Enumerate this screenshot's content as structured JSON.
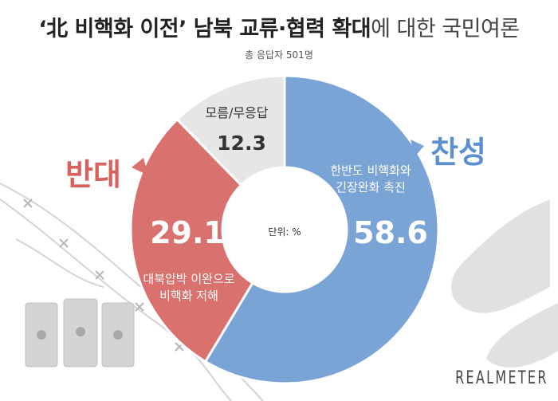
{
  "header": {
    "title_bold": "‘北 비핵화 이전’ 남북 교류·협력 확대",
    "title_rest": "에 대한 국민여론",
    "subtitle": "총 응답자 501명"
  },
  "chart_data": {
    "type": "pie",
    "donut": true,
    "unit_label": "단위: %",
    "slices": [
      {
        "category": "찬성",
        "description": [
          "한반도 비핵화와",
          "긴장완화 촉진"
        ],
        "value": 58.6,
        "color": "#7ba4d6"
      },
      {
        "category": "반대",
        "description": [
          "대북압박 이완으로",
          "비핵화 저해"
        ],
        "value": 29.1,
        "color": "#d9716e"
      },
      {
        "category": "모름/무응답",
        "description": [],
        "value": 12.3,
        "color": "#e6e6e6"
      }
    ]
  },
  "colors": {
    "agree_text": "#5a8fd0",
    "disagree_text": "#d9605c"
  },
  "footer": {
    "logo": "REALMETER"
  }
}
